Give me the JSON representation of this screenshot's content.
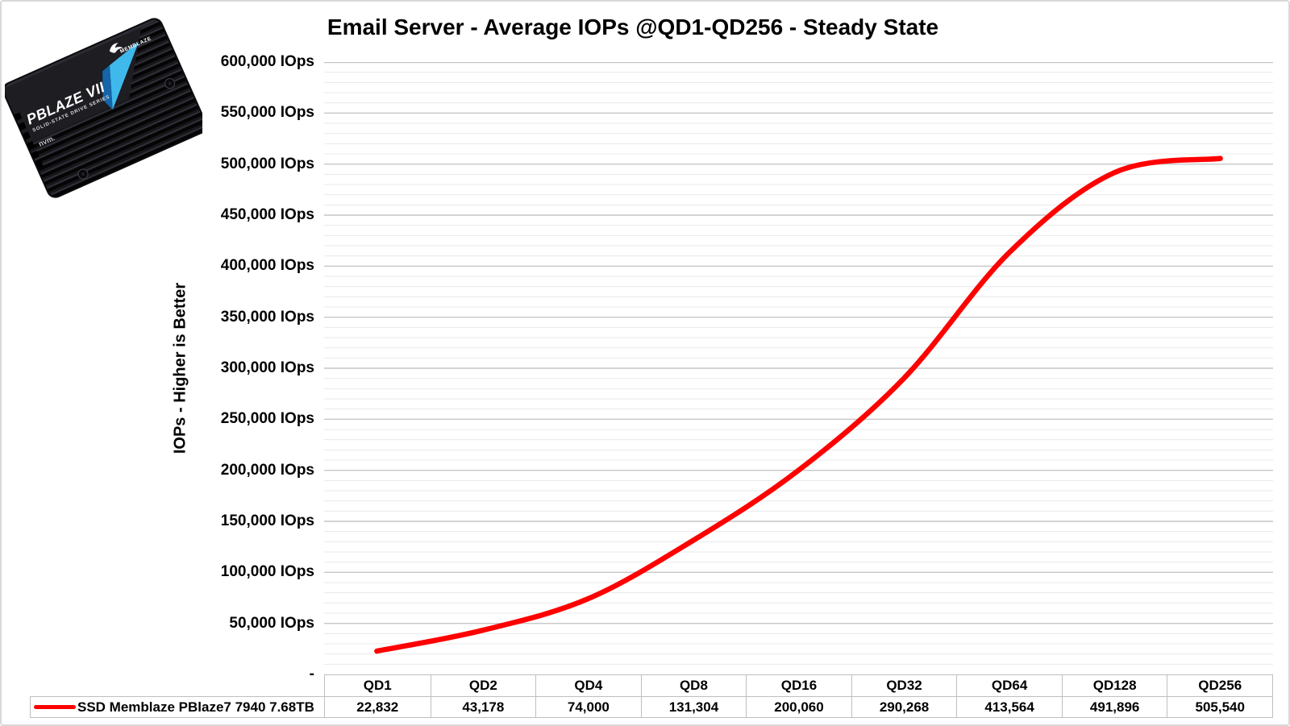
{
  "chart_data": {
    "type": "line",
    "title": "Email Server - Average IOPs @QD1-QD256 - Steady State",
    "ylabel": "IOPs  -  Higher is Better",
    "xlabel": "",
    "categories": [
      "QD1",
      "QD2",
      "QD4",
      "QD8",
      "QD16",
      "QD32",
      "QD64",
      "QD128",
      "QD256"
    ],
    "series": [
      {
        "name": "SSD Memblaze PBlaze7 7940 7.68TB",
        "color": "#ff0000",
        "values": [
          22832,
          43178,
          74000,
          131304,
          200060,
          290268,
          413564,
          491896,
          505540
        ]
      }
    ],
    "value_labels": [
      "22,832",
      "43,178",
      "74,000",
      "131,304",
      "200,060",
      "290,268",
      "413,564",
      "491,896",
      "505,540"
    ],
    "ylim": [
      0,
      600000
    ],
    "y_major_step": 50000,
    "y_minor_step": 10000,
    "y_tick_labels": [
      "600,000 IOps",
      "550,000 IOps",
      "500,000 IOps",
      "450,000 IOps",
      "400,000 IOps",
      "350,000 IOps",
      "300,000 IOps",
      "250,000 IOps",
      "200,000 IOps",
      "150,000 IOps",
      "100,000 IOps",
      "50,000 IOps",
      "-"
    ],
    "grid": true,
    "smooth_line": true,
    "legend_position": "table-left",
    "colors": {
      "line": "#ff0000",
      "grid_minor": "#e9e9e9",
      "grid_major": "#c6c6c6",
      "table_border": "#bfbfbf",
      "text": "#000000"
    }
  },
  "product_badge": {
    "alt": "Memblaze PBlaze VII NVMe SSD",
    "model_line": "PBLAZE VII",
    "series_line": "SOLID-STATE DRIVE SERIES",
    "brand": "MEMBLAZE",
    "nvme_mark": "nvm.",
    "accent_blue": "#3fb9ec"
  }
}
